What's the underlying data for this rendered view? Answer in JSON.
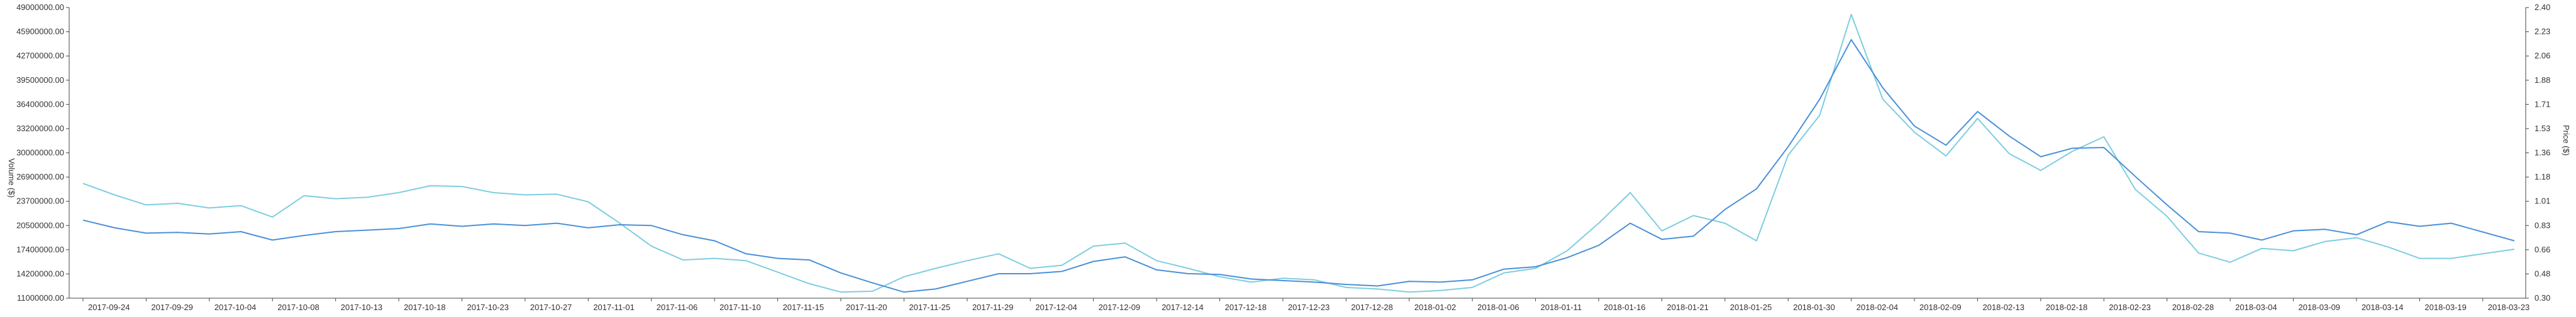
{
  "chart_data": {
    "type": "line",
    "title": "",
    "xlabel": "",
    "ylabel_left": "Volume ($)",
    "ylabel_right": "Price ($)",
    "y_left_lim": [
      11000000,
      49000000
    ],
    "y_right_lim": [
      0.3,
      2.4
    ],
    "y_left_ticks": [
      "11000000.00",
      "14200000.00",
      "17400000.00",
      "20500000.00",
      "23700000.00",
      "26900000.00",
      "30000000.00",
      "33200000.00",
      "36400000.00",
      "39500000.00",
      "42700000.00",
      "45900000.00",
      "49000000.00"
    ],
    "y_right_ticks": [
      "0.30",
      "0.48",
      "0.66",
      "0.83",
      "1.01",
      "1.18",
      "1.36",
      "1.53",
      "1.71",
      "1.88",
      "2.06",
      "2.23",
      "2.40"
    ],
    "x_ticks": [
      "2017-09-24",
      "2017-09-29",
      "2017-10-04",
      "2017-10-08",
      "2017-10-13",
      "2017-10-18",
      "2017-10-23",
      "2017-10-27",
      "2017-11-01",
      "2017-11-06",
      "2017-11-10",
      "2017-11-15",
      "2017-11-20",
      "2017-11-25",
      "2017-11-29",
      "2017-12-04",
      "2017-12-09",
      "2017-12-14",
      "2017-12-18",
      "2017-12-23",
      "2017-12-28",
      "2018-01-02",
      "2018-01-06",
      "2018-01-11",
      "2018-01-16",
      "2018-01-21",
      "2018-01-25",
      "2018-01-30",
      "2018-02-04",
      "2018-02-09",
      "2018-02-13",
      "2018-02-18",
      "2018-02-23",
      "2018-02-28",
      "2018-03-04",
      "2018-03-09",
      "2018-03-14",
      "2018-03-19",
      "2018-03-23"
    ],
    "grid": false,
    "series": [
      {
        "axis": "left",
        "color": "#4a90d9",
        "x": [
          0,
          0.5,
          1,
          1.5,
          2,
          2.5,
          3,
          3.5,
          4,
          4.5,
          5,
          5.5,
          6,
          6.5,
          7,
          7.5,
          8,
          8.5,
          9,
          9.5,
          10,
          10.5,
          11,
          11.5,
          12,
          12.5,
          13,
          13.5,
          14,
          14.5,
          15,
          15.5,
          16,
          16.5,
          17,
          17.5,
          18,
          18.5,
          19,
          19.5,
          20,
          20.5,
          21,
          21.5,
          22,
          22.5,
          23,
          23.5,
          24,
          24.5,
          25,
          25.5,
          26,
          26.5,
          27,
          27.5,
          28,
          28.5,
          29,
          29.5,
          30,
          30.5,
          31,
          31.5,
          32,
          32.5,
          33,
          33.5,
          34,
          34.5,
          35,
          35.5,
          36,
          36.5,
          37,
          37.5,
          38.5
        ],
        "values": [
          21200000,
          20200000,
          19500000,
          19600000,
          19400000,
          19700000,
          18600000,
          19200000,
          19700000,
          19900000,
          20100000,
          20700000,
          20400000,
          20700000,
          20500000,
          20800000,
          20200000,
          20600000,
          20500000,
          19300000,
          18500000,
          16800000,
          16200000,
          16000000,
          14300000,
          13000000,
          11800000,
          12200000,
          13200000,
          14200000,
          14200000,
          14500000,
          15800000,
          16400000,
          14700000,
          14200000,
          14100000,
          13500000,
          13300000,
          13100000,
          12800000,
          12600000,
          13200000,
          13100000,
          13400000,
          14800000,
          15100000,
          16300000,
          17900000,
          20800000,
          18700000,
          19100000,
          22600000,
          25300000,
          30800000,
          37000000,
          44800000,
          38500000,
          33500000,
          31000000,
          35400000,
          32200000,
          29500000,
          30600000,
          30700000,
          26900000,
          23200000,
          19700000,
          19500000,
          18600000,
          19800000,
          20000000,
          19300000,
          21000000,
          20400000,
          20800000,
          18500000
        ],
        "name": ""
      },
      {
        "axis": "left",
        "color": "#7ecde0",
        "x": [
          0,
          0.5,
          1,
          1.5,
          2,
          2.5,
          3,
          3.5,
          4,
          4.5,
          5,
          5.5,
          6,
          6.5,
          7,
          7.5,
          8,
          8.5,
          9,
          9.5,
          10,
          10.5,
          11,
          11.5,
          12,
          12.5,
          13,
          13.5,
          14,
          14.5,
          15,
          15.5,
          16,
          16.5,
          17,
          17.5,
          18,
          18.5,
          19,
          19.5,
          20,
          20.5,
          21,
          21.5,
          22,
          22.5,
          23,
          23.5,
          24,
          24.5,
          25,
          25.5,
          26,
          26.5,
          27,
          27.5,
          28,
          28.5,
          29,
          29.5,
          30,
          30.5,
          31,
          31.5,
          32,
          32.5,
          33,
          33.5,
          34,
          34.5,
          35,
          35.5,
          36,
          36.5,
          37,
          37.5,
          38.5
        ],
        "values": [
          26000000,
          24500000,
          23200000,
          23400000,
          22800000,
          23100000,
          21600000,
          24400000,
          24000000,
          24200000,
          24800000,
          25700000,
          25600000,
          24800000,
          24500000,
          24600000,
          23600000,
          20800000,
          17800000,
          16000000,
          16200000,
          15900000,
          14400000,
          12900000,
          11800000,
          11900000,
          13800000,
          14900000,
          15900000,
          16800000,
          14900000,
          15300000,
          17800000,
          18200000,
          15900000,
          14900000,
          13800000,
          13100000,
          13600000,
          13400000,
          12400000,
          12200000,
          11800000,
          12000000,
          12400000,
          14300000,
          14900000,
          17200000,
          20800000,
          24800000,
          19800000,
          21800000,
          20800000,
          18500000,
          29700000,
          34900000,
          48100000,
          37000000,
          32700000,
          29600000,
          34500000,
          29900000,
          27700000,
          30200000,
          32100000,
          25200000,
          21700000,
          16900000,
          15700000,
          17500000,
          17200000,
          18400000,
          18900000,
          17700000,
          16200000,
          16200000,
          17400000
        ],
        "name": ""
      }
    ]
  }
}
